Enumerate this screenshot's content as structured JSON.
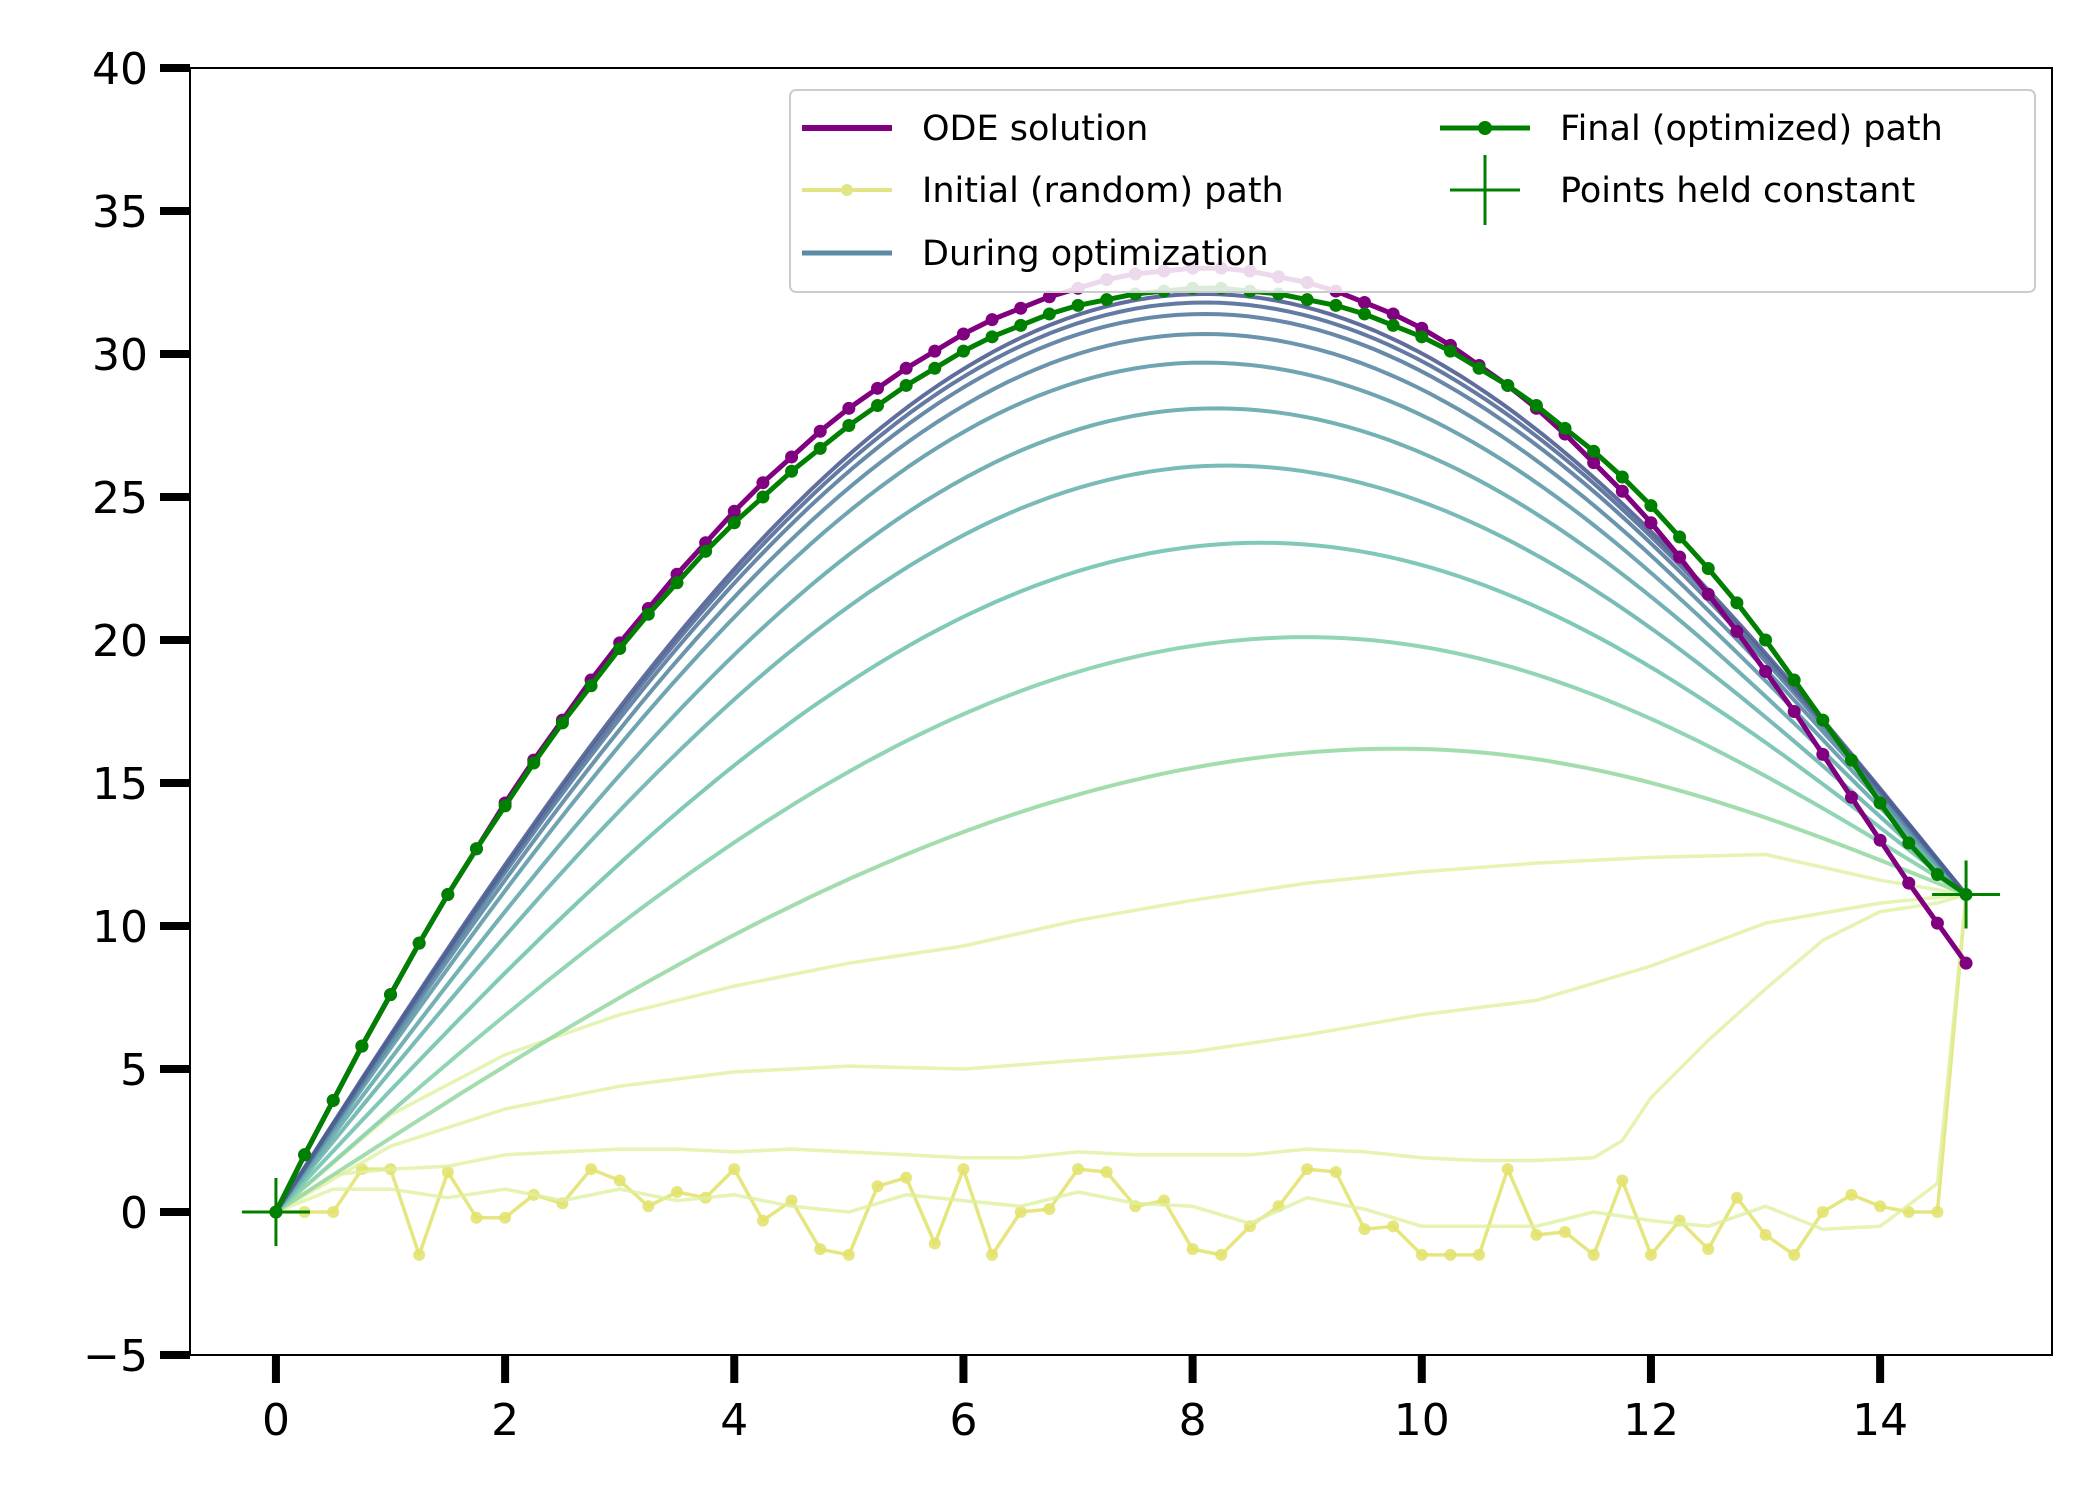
{
  "chart_data": {
    "type": "line",
    "xlim": [
      -0.75,
      15.5
    ],
    "ylim": [
      -5,
      40
    ],
    "x_ticks": [
      0,
      2,
      4,
      6,
      8,
      10,
      12,
      14
    ],
    "y_ticks": [
      -5,
      0,
      5,
      10,
      15,
      20,
      25,
      30,
      35,
      40
    ],
    "x_tick_labels": [
      "0",
      "2",
      "4",
      "6",
      "8",
      "10",
      "12",
      "14"
    ],
    "y_tick_labels": [
      "−5",
      "0",
      "5",
      "10",
      "15",
      "20",
      "25",
      "30",
      "35",
      "40"
    ],
    "grid": false,
    "legend_position": "top-right",
    "legend": [
      {
        "label": "ODE solution",
        "color": "#800080",
        "marker": "line"
      },
      {
        "label": "Initial (random) path",
        "color": "#e2e584",
        "marker": "line-dot"
      },
      {
        "label": "During optimization",
        "color": "#5b8aa4",
        "marker": "line"
      },
      {
        "label": "Final (optimized) path",
        "color": "#008000",
        "marker": "line-dot"
      },
      {
        "label": "Points held constant",
        "color": "#008000",
        "marker": "plus"
      }
    ],
    "ode_solution": {
      "name": "ODE solution",
      "color": "#800080",
      "x": [
        0,
        0.25,
        0.5,
        0.75,
        1,
        1.25,
        1.5,
        1.75,
        2,
        2.25,
        2.5,
        2.75,
        3,
        3.25,
        3.5,
        3.75,
        4,
        4.25,
        4.5,
        4.75,
        5,
        5.25,
        5.5,
        5.75,
        6,
        6.25,
        6.5,
        6.75,
        7,
        7.25,
        7.5,
        7.75,
        8,
        8.25,
        8.5,
        8.75,
        9,
        9.25,
        9.5,
        9.75,
        10,
        10.25,
        10.5,
        10.75,
        11,
        11.25,
        11.5,
        11.75,
        12,
        12.25,
        12.5,
        12.75,
        13,
        13.25,
        13.5,
        13.75,
        14,
        14.25,
        14.5,
        14.75
      ],
      "y": [
        0,
        2.0,
        3.9,
        5.8,
        7.6,
        9.4,
        11.1,
        12.7,
        14.3,
        15.8,
        17.2,
        18.6,
        19.9,
        21.1,
        22.3,
        23.4,
        24.5,
        25.5,
        26.4,
        27.3,
        28.1,
        28.8,
        29.5,
        30.1,
        30.7,
        31.2,
        31.6,
        32.0,
        32.3,
        32.6,
        32.8,
        32.9,
        33.0,
        33.0,
        32.9,
        32.7,
        32.5,
        32.2,
        31.8,
        31.4,
        30.9,
        30.3,
        29.6,
        28.9,
        28.1,
        27.2,
        26.2,
        25.2,
        24.1,
        22.9,
        21.6,
        20.3,
        18.9,
        17.5,
        16.0,
        14.5,
        13.0,
        11.5,
        10.1,
        8.7
      ]
    },
    "final_path": {
      "name": "Final (optimized) path",
      "color": "#008000",
      "x": [
        0,
        0.25,
        0.5,
        0.75,
        1,
        1.25,
        1.5,
        1.75,
        2,
        2.25,
        2.5,
        2.75,
        3,
        3.25,
        3.5,
        3.75,
        4,
        4.25,
        4.5,
        4.75,
        5,
        5.25,
        5.5,
        5.75,
        6,
        6.25,
        6.5,
        6.75,
        7,
        7.25,
        7.5,
        7.75,
        8,
        8.25,
        8.5,
        8.75,
        9,
        9.25,
        9.5,
        9.75,
        10,
        10.25,
        10.5,
        10.75,
        11,
        11.25,
        11.5,
        11.75,
        12,
        12.25,
        12.5,
        12.75,
        13,
        13.25,
        13.5,
        13.75,
        14,
        14.25,
        14.5,
        14.75
      ],
      "y": [
        0,
        2.0,
        3.9,
        5.8,
        7.6,
        9.4,
        11.1,
        12.7,
        14.2,
        15.7,
        17.1,
        18.4,
        19.7,
        20.9,
        22.0,
        23.1,
        24.1,
        25.0,
        25.9,
        26.7,
        27.5,
        28.2,
        28.9,
        29.5,
        30.1,
        30.6,
        31.0,
        31.4,
        31.7,
        31.9,
        32.1,
        32.2,
        32.3,
        32.3,
        32.2,
        32.1,
        31.9,
        31.7,
        31.4,
        31.0,
        30.6,
        30.1,
        29.5,
        28.9,
        28.2,
        27.4,
        26.6,
        25.7,
        24.7,
        23.6,
        22.5,
        21.3,
        20.0,
        18.6,
        17.2,
        15.8,
        14.3,
        12.9,
        11.8,
        11.1
      ]
    },
    "initial_paths": [
      {
        "name": "Initial (random) path",
        "x": [
          0,
          0.25,
          0.5,
          0.75,
          1,
          1.25,
          1.5,
          1.75,
          2,
          2.25,
          2.5,
          2.75,
          3,
          3.25,
          3.5,
          3.75,
          4,
          4.25,
          4.5,
          4.75,
          5,
          5.25,
          5.5,
          5.75,
          6,
          6.25,
          6.5,
          6.75,
          7,
          7.25,
          7.5,
          7.75,
          8,
          8.25,
          8.5,
          8.75,
          9,
          9.25,
          9.5,
          9.75,
          10,
          10.25,
          10.5,
          10.75,
          11,
          11.25,
          11.5,
          11.75,
          12,
          12.25,
          12.5,
          12.75,
          13,
          13.25,
          13.5,
          13.75,
          14,
          14.25,
          14.5,
          14.75
        ],
        "y": [
          0,
          0.0,
          0.0,
          1.5,
          1.5,
          -1.5,
          1.4,
          -0.2,
          -0.2,
          0.6,
          0.3,
          1.5,
          1.1,
          0.2,
          0.7,
          0.5,
          1.5,
          -0.3,
          0.4,
          -1.3,
          -1.5,
          0.9,
          1.2,
          -1.1,
          1.5,
          -1.5,
          0.0,
          0.1,
          1.5,
          1.4,
          0.2,
          0.4,
          -1.3,
          -1.5,
          -0.5,
          0.2,
          1.5,
          1.4,
          -0.6,
          -0.5,
          -1.5,
          -1.5,
          -1.5,
          1.5,
          -0.8,
          -0.7,
          -1.5,
          1.1,
          -1.5,
          -0.3,
          -1.3,
          0.5,
          -0.8,
          -1.5,
          0.0,
          0.6,
          0.2,
          0.0,
          0.0,
          11.1
        ]
      },
      {
        "x": [
          0,
          0.5,
          1,
          1.5,
          2,
          2.5,
          3,
          3.5,
          4,
          4.5,
          5,
          5.5,
          6,
          6.5,
          7,
          7.5,
          8,
          8.5,
          9,
          9.5,
          10,
          10.5,
          11,
          11.5,
          12,
          12.5,
          13,
          13.5,
          14,
          14.5,
          14.75
        ],
        "y": [
          0,
          0.8,
          0.8,
          0.5,
          0.8,
          0.4,
          0.8,
          0.4,
          0.6,
          0.2,
          0.0,
          0.6,
          0.4,
          0.2,
          0.7,
          0.3,
          0.2,
          -0.4,
          0.5,
          0.1,
          -0.5,
          -0.5,
          -0.5,
          0.0,
          -0.3,
          -0.5,
          0.2,
          -0.6,
          -0.5,
          1.0,
          11.1
        ]
      },
      {
        "x": [
          0,
          0.5,
          1,
          1.5,
          2,
          2.5,
          3,
          3.5,
          4,
          4.5,
          5,
          5.5,
          6,
          6.5,
          7,
          7.5,
          8,
          8.5,
          9,
          9.5,
          10,
          10.5,
          11,
          11.5,
          11.75,
          12,
          12.5,
          13,
          13.5,
          14,
          14.5,
          14.75
        ],
        "y": [
          0,
          1.3,
          1.5,
          1.6,
          2.0,
          2.1,
          2.2,
          2.2,
          2.1,
          2.2,
          2.1,
          2.0,
          1.9,
          1.9,
          2.1,
          2.0,
          2.0,
          2.0,
          2.2,
          2.1,
          1.9,
          1.8,
          1.8,
          1.9,
          2.5,
          4.0,
          6.0,
          7.8,
          9.5,
          10.5,
          10.8,
          11.1
        ]
      },
      {
        "x": [
          0,
          1,
          2,
          3,
          4,
          5,
          6,
          7,
          8,
          9,
          10,
          11,
          12,
          13,
          14,
          14.75
        ],
        "y": [
          0,
          2.3,
          3.6,
          4.4,
          4.9,
          5.1,
          5.0,
          5.3,
          5.6,
          6.2,
          6.9,
          7.4,
          8.6,
          10.1,
          10.8,
          11.1
        ]
      },
      {
        "x": [
          0,
          1,
          2,
          3,
          4,
          5,
          6,
          7,
          8,
          9,
          10,
          11,
          12,
          13,
          14,
          14.75
        ],
        "y": [
          0,
          3.4,
          5.5,
          6.9,
          7.9,
          8.7,
          9.3,
          10.2,
          10.9,
          11.5,
          11.9,
          12.2,
          12.4,
          12.5,
          11.6,
          11.1
        ]
      }
    ],
    "optimization_paths": [
      {
        "peak": 16.2,
        "x_peak": 9.8,
        "color": "#99d8a4"
      },
      {
        "peak": 20.1,
        "x_peak": 9.0,
        "color": "#86d0ad"
      },
      {
        "peak": 23.4,
        "x_peak": 8.6,
        "color": "#72c2b0"
      },
      {
        "peak": 26.1,
        "x_peak": 8.3,
        "color": "#6ab4ae"
      },
      {
        "peak": 28.1,
        "x_peak": 8.2,
        "color": "#64a8ac"
      },
      {
        "peak": 29.7,
        "x_peak": 8.1,
        "color": "#5f9baa"
      },
      {
        "peak": 30.7,
        "x_peak": 8.1,
        "color": "#5b8aa4"
      },
      {
        "peak": 31.4,
        "x_peak": 8.1,
        "color": "#567b9e"
      },
      {
        "peak": 31.8,
        "x_peak": 8.1,
        "color": "#526c98"
      },
      {
        "peak": 32.1,
        "x_peak": 8.1,
        "color": "#4e5e92"
      }
    ],
    "held_points": {
      "name": "Points held constant",
      "color": "#008000",
      "x": [
        0,
        14.75
      ],
      "y": [
        0,
        11.1
      ]
    }
  }
}
